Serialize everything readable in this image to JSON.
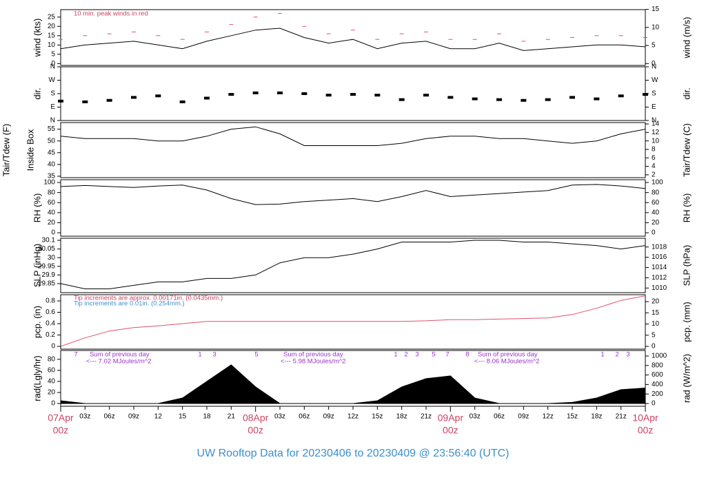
{
  "chart_data": [
    {
      "type": "line",
      "ylabel": "wind (kts)",
      "y2label": "wind (m/s)",
      "x": [
        0,
        3,
        6,
        9,
        12,
        15,
        18,
        21,
        24,
        27,
        30,
        33,
        36,
        39,
        42,
        45,
        48,
        51,
        54,
        57,
        60,
        63,
        66,
        69,
        72
      ],
      "xlim": [
        0,
        72
      ],
      "ylim": [
        -1,
        29
      ],
      "yticks": [
        0,
        5,
        10,
        15,
        20,
        25
      ],
      "y2lim": [
        -0.51,
        14.92
      ],
      "y2ticks": [
        0,
        5,
        10,
        15
      ],
      "annotations": [
        {
          "text": "10 min. peak winds in red",
          "color": "#d04060"
        }
      ],
      "series": [
        {
          "name": "peak",
          "color": "#e0506a",
          "marker": "dash",
          "values": [
            13,
            15,
            16,
            17,
            15,
            13,
            17,
            21,
            25,
            27,
            20,
            16,
            18,
            13,
            16,
            17,
            13,
            13,
            16,
            12,
            13,
            14,
            15,
            15,
            14
          ]
        },
        {
          "name": "wind",
          "color": "#000000",
          "values": [
            8,
            10,
            11,
            12,
            10,
            8,
            12,
            15,
            18,
            19,
            14,
            11,
            13,
            8,
            11,
            12,
            8,
            8,
            11,
            7,
            8,
            9,
            10,
            10,
            9
          ]
        }
      ]
    },
    {
      "type": "line",
      "ylabel": "dir.",
      "y2label": "dir.",
      "x": [
        0,
        3,
        6,
        9,
        12,
        15,
        18,
        21,
        24,
        27,
        30,
        33,
        36,
        39,
        42,
        45,
        48,
        51,
        54,
        57,
        60,
        63,
        66,
        69,
        72
      ],
      "xlim": [
        0,
        72
      ],
      "ylim": [
        0,
        360
      ],
      "yticks": [
        {
          "value": 0,
          "label": "N"
        },
        {
          "value": 90,
          "label": "E"
        },
        {
          "value": 180,
          "label": "S"
        },
        {
          "value": 270,
          "label": "W"
        },
        {
          "value": 360,
          "label": "N"
        }
      ],
      "y2lim": [
        0,
        360
      ],
      "y2ticks": [
        {
          "value": 0,
          "label": "N"
        },
        {
          "value": 90,
          "label": "E"
        },
        {
          "value": 180,
          "label": "S"
        },
        {
          "value": 270,
          "label": "W"
        },
        {
          "value": 360,
          "label": "N"
        }
      ],
      "series": [
        {
          "name": "direction",
          "color": "#000000",
          "marker": "dot",
          "values": [
            130,
            125,
            135,
            155,
            165,
            125,
            150,
            175,
            185,
            185,
            180,
            170,
            175,
            170,
            140,
            170,
            155,
            145,
            140,
            135,
            140,
            155,
            145,
            165,
            175
          ]
        }
      ]
    },
    {
      "type": "line",
      "ylabel_outer": "Tair/Tdew (F)",
      "ylabel": "Inside Box",
      "y2label": "Tair/Tdew (C)",
      "x": [
        0,
        3,
        6,
        9,
        12,
        15,
        18,
        21,
        24,
        27,
        30,
        33,
        36,
        39,
        42,
        45,
        48,
        51,
        54,
        57,
        60,
        63,
        66,
        69,
        72
      ],
      "xlim": [
        0,
        72
      ],
      "ylim": [
        34.4,
        57.8
      ],
      "yticks": [
        35,
        40,
        45,
        50,
        55
      ],
      "y2lim": [
        1.33,
        14.33
      ],
      "y2ticks": [
        2,
        4,
        6,
        8,
        10,
        12,
        14
      ],
      "series": [
        {
          "name": "Tair",
          "color": "#000000",
          "values": [
            52,
            51,
            51,
            51,
            50,
            50,
            52,
            55,
            56,
            53,
            48,
            48,
            48,
            48,
            49,
            51,
            52,
            52,
            51,
            51,
            50,
            49,
            50,
            53,
            55
          ]
        }
      ]
    },
    {
      "type": "line",
      "ylabel": "RH (%)",
      "y2label": "RH (%)",
      "x": [
        0,
        3,
        6,
        9,
        12,
        15,
        18,
        21,
        24,
        27,
        30,
        33,
        36,
        39,
        42,
        45,
        48,
        51,
        54,
        57,
        60,
        63,
        66,
        69,
        72
      ],
      "xlim": [
        0,
        72
      ],
      "ylim": [
        -6.8,
        105.5
      ],
      "yticks": [
        0,
        20,
        40,
        60,
        80,
        100
      ],
      "y2lim": [
        -6.8,
        105.5
      ],
      "y2ticks": [
        0,
        20,
        40,
        60,
        80,
        100
      ],
      "series": [
        {
          "name": "RH",
          "color": "#000000",
          "values": [
            92,
            94,
            92,
            90,
            93,
            95,
            85,
            68,
            56,
            57,
            62,
            65,
            68,
            62,
            72,
            84,
            72,
            75,
            78,
            81,
            84,
            95,
            96,
            93,
            88
          ]
        }
      ]
    },
    {
      "type": "line",
      "ylabel": "SLP (inHg)",
      "y2label": "SLP (hPa)",
      "x": [
        0,
        3,
        6,
        9,
        12,
        15,
        18,
        21,
        24,
        27,
        30,
        33,
        36,
        39,
        42,
        45,
        48,
        51,
        54,
        57,
        60,
        63,
        66,
        69,
        72
      ],
      "xlim": [
        0,
        72
      ],
      "ylim": [
        29.798,
        30.112
      ],
      "yticks": [
        29.85,
        29.9,
        29.95,
        30,
        30.05,
        30.1
      ],
      "y2lim": [
        1009.1,
        1019.7
      ],
      "y2ticks": [
        1010,
        1012,
        1014,
        1016,
        1018
      ],
      "series": [
        {
          "name": "SLP",
          "color": "#000000",
          "values": [
            29.85,
            29.82,
            29.82,
            29.84,
            29.86,
            29.86,
            29.88,
            29.88,
            29.9,
            29.97,
            30,
            30,
            30.02,
            30.05,
            30.09,
            30.09,
            30.09,
            30.1,
            30.1,
            30.09,
            30.09,
            30.08,
            30.07,
            30.05,
            30.07
          ]
        }
      ]
    },
    {
      "type": "line",
      "ylabel": "pcp. (in)",
      "y2label": "pcp. (mm)",
      "x": [
        0,
        3,
        6,
        9,
        12,
        15,
        18,
        21,
        24,
        27,
        30,
        33,
        36,
        39,
        42,
        45,
        48,
        51,
        54,
        57,
        60,
        63,
        66,
        69,
        72
      ],
      "xlim": [
        0,
        72
      ],
      "ylim": [
        -0.048,
        0.909
      ],
      "yticks": [
        0,
        0.2,
        0.4,
        0.6,
        0.8
      ],
      "y2lim": [
        -1.22,
        23.09
      ],
      "y2ticks": [
        0,
        5,
        10,
        15,
        20
      ],
      "annotations": [
        {
          "text": "Tip increments are approx. 0.00171in. (0.0435mm.)",
          "color": "#d04060"
        },
        {
          "text": "Tip increments are 0.01in. (0.254mm.)",
          "color": "#3a8fd0"
        }
      ],
      "series": [
        {
          "name": "pcp",
          "color": "#e0506a",
          "values": [
            0,
            0.15,
            0.27,
            0.33,
            0.36,
            0.4,
            0.44,
            0.44,
            0.44,
            0.44,
            0.44,
            0.44,
            0.44,
            0.44,
            0.44,
            0.45,
            0.47,
            0.47,
            0.48,
            0.49,
            0.5,
            0.56,
            0.67,
            0.81,
            0.89
          ]
        }
      ]
    },
    {
      "type": "area",
      "ylabel": "rad(Lgly/hr)",
      "y2label": "rad (W/m^2)",
      "x": [
        0,
        3,
        6,
        9,
        12,
        15,
        18,
        21,
        24,
        27,
        30,
        33,
        36,
        39,
        42,
        45,
        48,
        51,
        54,
        57,
        60,
        63,
        66,
        69,
        72
      ],
      "xlim": [
        0,
        72
      ],
      "ylim": [
        -5,
        96
      ],
      "yticks": [
        0,
        20,
        40,
        60,
        80
      ],
      "y2lim": [
        -58,
        1116
      ],
      "y2ticks": [
        0,
        200,
        400,
        600,
        800,
        1000
      ],
      "xticks": [
        {
          "value": 3,
          "label": "03z"
        },
        {
          "value": 6,
          "label": "06z"
        },
        {
          "value": 9,
          "label": "09z"
        },
        12,
        15,
        18,
        21,
        {
          "value": 27,
          "label": "03z"
        },
        {
          "value": 30,
          "label": "06z"
        },
        {
          "value": 33,
          "label": "09z"
        },
        {
          "value": 36,
          "label": "12z"
        },
        {
          "value": 39,
          "label": "15z"
        },
        {
          "value": 42,
          "label": "18z"
        },
        {
          "value": 45,
          "label": "21z"
        },
        {
          "value": 51,
          "label": "03z"
        },
        {
          "value": 54,
          "label": "06z"
        },
        {
          "value": 57,
          "label": "09z"
        },
        {
          "value": 60,
          "label": "12z"
        },
        {
          "value": 63,
          "label": "15z"
        },
        {
          "value": 66,
          "label": "18z"
        },
        {
          "value": 69,
          "label": "21z"
        }
      ],
      "date_ticks": [
        {
          "value": 0,
          "label": "07Apr",
          "sub": "00z"
        },
        {
          "value": 24,
          "label": "08Apr",
          "sub": "00z"
        },
        {
          "value": 48,
          "label": "09Apr",
          "sub": "00z"
        },
        {
          "value": 72,
          "label": "10Apr",
          "sub": "00z"
        }
      ],
      "annotations": [
        {
          "text": "7",
          "color": "#9933cc"
        },
        {
          "text": "Sum of previous day",
          "color": "#9933cc"
        },
        {
          "text": "<--- 7.02 MJoules/m^2",
          "color": "#9933cc"
        },
        {
          "text": "1",
          "color": "#9933cc"
        },
        {
          "text": "3",
          "color": "#9933cc"
        },
        {
          "text": "5",
          "color": "#9933cc"
        },
        {
          "text": "Sum of previous day",
          "color": "#9933cc"
        },
        {
          "text": "<--- 5.98 MJoules/m^2",
          "color": "#9933cc"
        },
        {
          "text": "1",
          "color": "#9933cc"
        },
        {
          "text": "2",
          "color": "#9933cc"
        },
        {
          "text": "3",
          "color": "#9933cc"
        },
        {
          "text": "5",
          "color": "#9933cc"
        },
        {
          "text": "7",
          "color": "#9933cc"
        },
        {
          "text": "8",
          "color": "#9933cc"
        },
        {
          "text": "Sum of previous day",
          "color": "#9933cc"
        },
        {
          "text": "<--- 8.06 MJoules/m^2",
          "color": "#9933cc"
        },
        {
          "text": "1",
          "color": "#9933cc"
        },
        {
          "text": "2",
          "color": "#9933cc"
        },
        {
          "text": "3",
          "color": "#9933cc"
        }
      ],
      "series": [
        {
          "name": "radiation",
          "color": "#000000",
          "values": [
            5,
            0,
            0,
            0,
            0,
            10,
            40,
            70,
            30,
            0,
            0,
            0,
            0,
            5,
            30,
            45,
            50,
            10,
            0,
            0,
            0,
            2,
            10,
            25,
            28
          ]
        }
      ]
    }
  ],
  "title": "UW Rooftop Data for 20230406  to  20230409 @ 23:56:40  (UTC)"
}
